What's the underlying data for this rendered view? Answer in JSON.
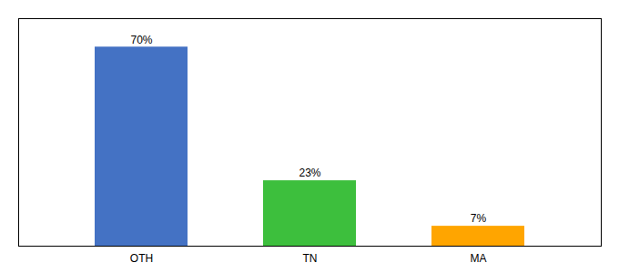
{
  "chart_data": {
    "type": "bar",
    "categories": [
      "OTH",
      "TN",
      "MA"
    ],
    "values": [
      70,
      23,
      7
    ],
    "value_labels": [
      "70%",
      "23%",
      "7%"
    ],
    "colors": [
      "#4472C4",
      "#3DBF3D",
      "#FFA500"
    ],
    "ylim": [
      0,
      80
    ],
    "data_labels": true,
    "tick_labels": "x",
    "grid": false
  }
}
